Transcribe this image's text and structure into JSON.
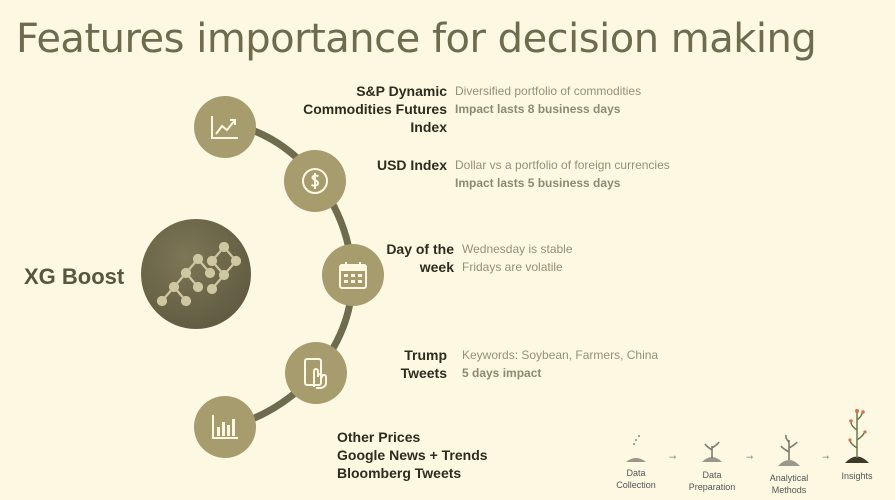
{
  "title": "Features importance for decision making",
  "model": {
    "label": "XG Boost"
  },
  "features": [
    {
      "label_lines": [
        "S&P Dynamic",
        "Commodities Futures",
        "Index"
      ],
      "desc_lines": [
        "Diversified portfolio of commodities",
        "Impact lasts 8 business days"
      ],
      "icon": "line-chart-icon"
    },
    {
      "label_lines": [
        "USD Index"
      ],
      "desc_lines": [
        "Dollar vs a portfolio of foreign currencies",
        "Impact lasts 5 business days"
      ],
      "icon": "dollar-coin-icon"
    },
    {
      "label_lines": [
        "Day of the",
        "week"
      ],
      "desc_lines": [
        "Wednesday is stable",
        "Fridays are volatile"
      ],
      "icon": "calendar-icon"
    },
    {
      "label_lines": [
        "Trump",
        "Tweets"
      ],
      "desc_lines": [
        "Keywords: Soybean, Farmers, China",
        "5 days impact"
      ],
      "icon": "phone-tap-icon"
    },
    {
      "label_lines": [
        "Other Prices",
        "Google News + Trends",
        "Bloomberg Tweets"
      ],
      "icon": "bar-chart-icon"
    }
  ],
  "pipeline": [
    {
      "label_lines": [
        "Data",
        "Collection"
      ]
    },
    {
      "label_lines": [
        "Data",
        "Preparation"
      ]
    },
    {
      "label_lines": [
        "Analytical",
        "Methods"
      ]
    },
    {
      "label_lines": [
        "Insights"
      ]
    }
  ],
  "pipeline_arrow": "➞",
  "colors": {
    "background": "#fdf8e2",
    "circle": "#a69c6e",
    "arc": "#6e6b4e",
    "model_circle": "#6b6549",
    "title": "#6e6b4e"
  }
}
